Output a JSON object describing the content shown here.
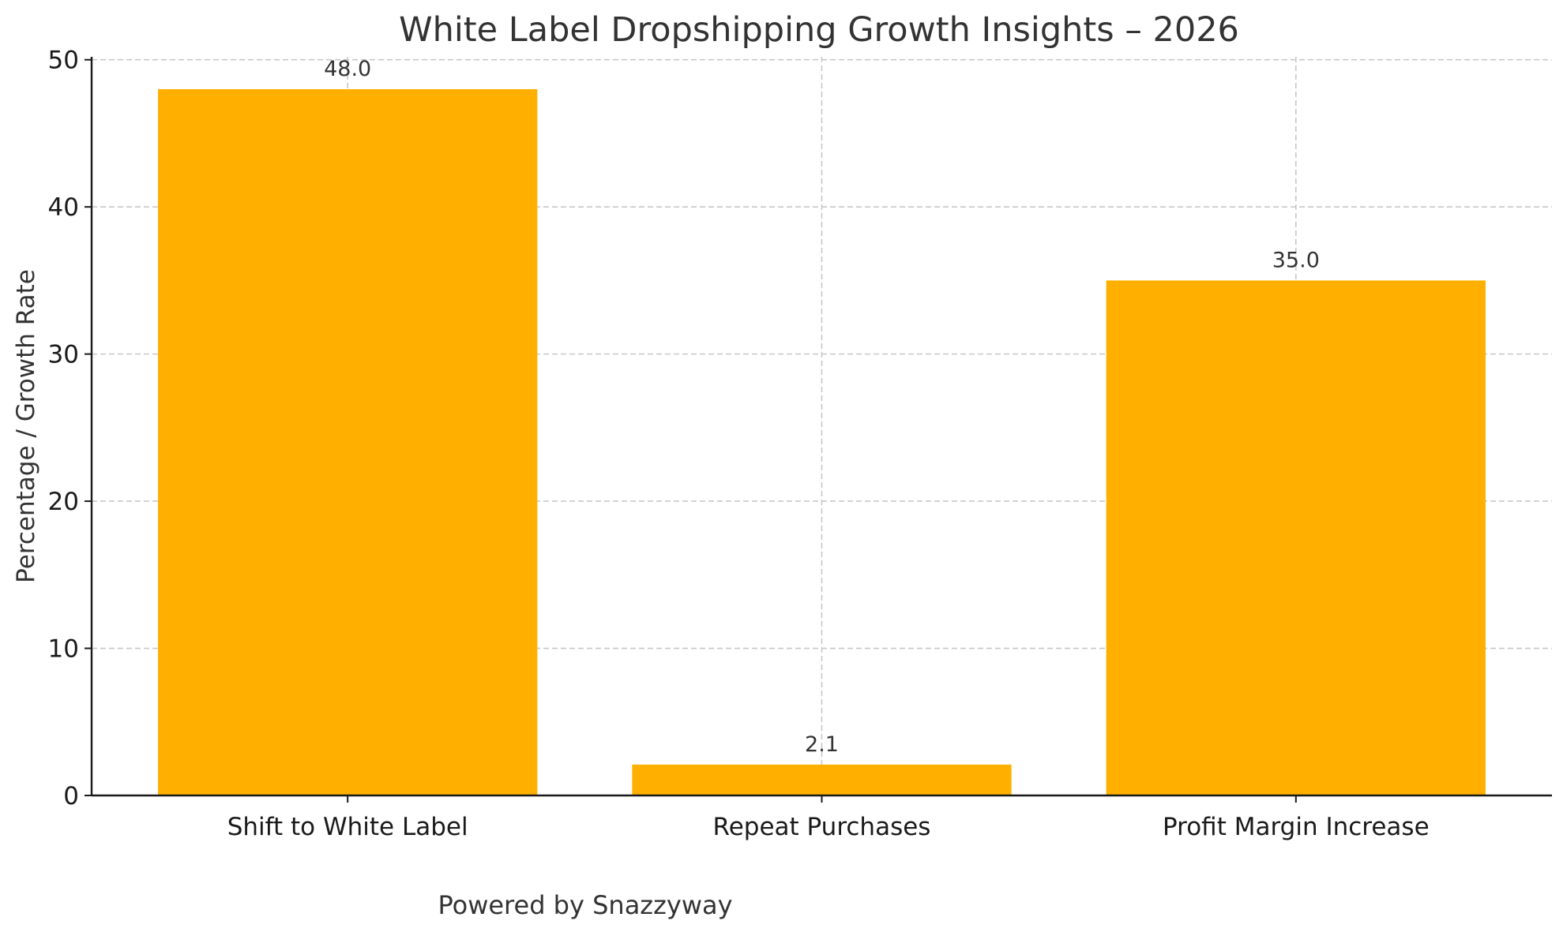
{
  "chart_data": {
    "type": "bar",
    "title": "White Label Dropshipping Growth Insights – 2026",
    "xlabel": "",
    "ylabel": "Percentage / Growth Rate",
    "categories": [
      "Shift to White Label",
      "Repeat Purchases",
      "Profit Margin Increase"
    ],
    "values": [
      48.0,
      2.1,
      35.0
    ],
    "value_labels": [
      "48.0",
      "2.1",
      "35.0"
    ],
    "ylim": [
      0,
      50.2
    ],
    "yticks": [
      0,
      10,
      20,
      30,
      40,
      50
    ],
    "ytick_labels": [
      "0",
      "10",
      "20",
      "30",
      "40",
      "50"
    ],
    "bar_color": "#ffaf00",
    "grid": true,
    "legend": null,
    "footer": "Powered by Snazzyway"
  }
}
